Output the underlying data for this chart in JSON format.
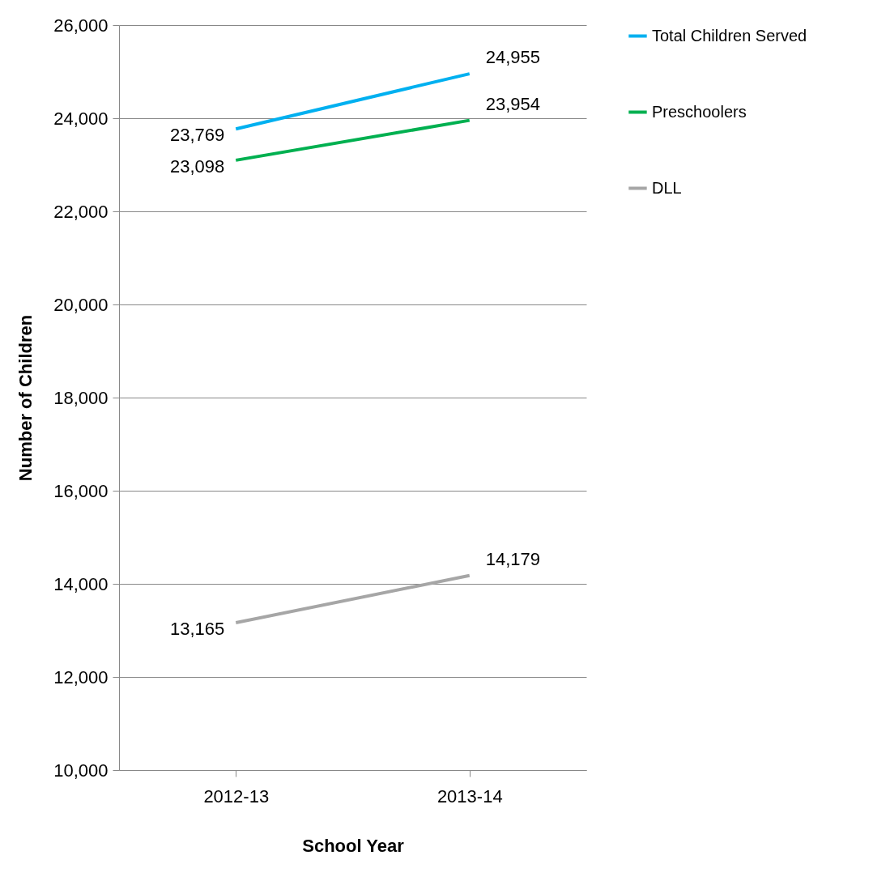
{
  "chart_data": {
    "type": "line",
    "xlabel": "School Year",
    "ylabel": "Number of Children",
    "categories": [
      "2012-13",
      "2013-14"
    ],
    "series": [
      {
        "name": "Total Children Served",
        "color": "#00b0f0",
        "values": [
          23769,
          24955
        ],
        "value_labels": [
          "23,769",
          "24,955"
        ]
      },
      {
        "name": "Preschoolers",
        "color": "#00b050",
        "values": [
          23098,
          23954
        ],
        "value_labels": [
          "23,098",
          "23,954"
        ]
      },
      {
        "name": "DLL",
        "color": "#a6a6a6",
        "values": [
          13165,
          14179
        ],
        "value_labels": [
          "13,165",
          "14,179"
        ]
      }
    ],
    "ylim": [
      10000,
      26000
    ],
    "yticks": [
      {
        "value": 10000,
        "label": "10,000"
      },
      {
        "value": 12000,
        "label": "12,000"
      },
      {
        "value": 14000,
        "label": "14,000"
      },
      {
        "value": 16000,
        "label": "16,000"
      },
      {
        "value": 18000,
        "label": "18,000"
      },
      {
        "value": 20000,
        "label": "20,000"
      },
      {
        "value": 22000,
        "label": "22,000"
      },
      {
        "value": 24000,
        "label": "24,000"
      },
      {
        "value": 26000,
        "label": "26,000"
      }
    ],
    "grid": "y",
    "legend": "right"
  }
}
